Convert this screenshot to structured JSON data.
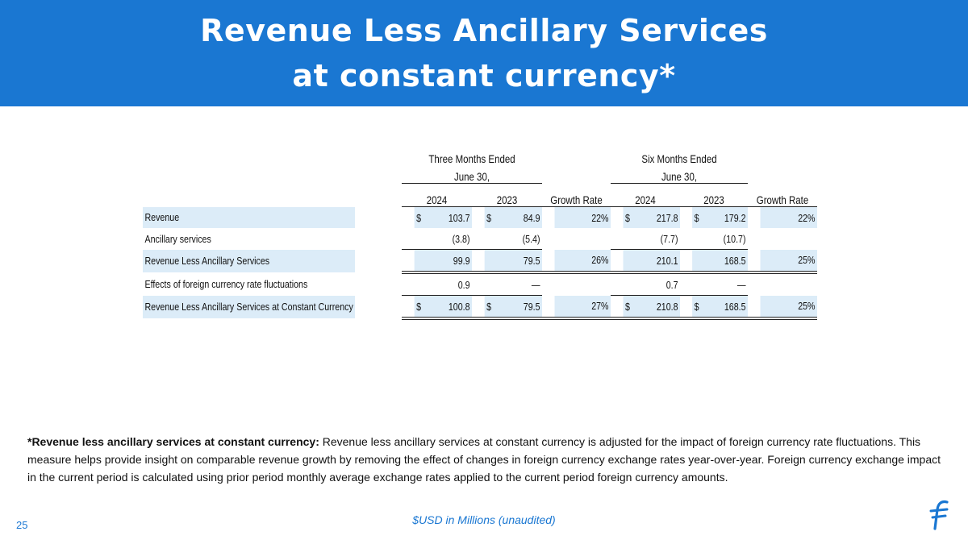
{
  "header": {
    "title_line1": "Revenue Less Ancillary Services",
    "title_line2": "at constant currency*"
  },
  "table": {
    "group1_line1": "Three Months Ended",
    "group1_line2": "June 30,",
    "group2_line1": "Six Months Ended",
    "group2_line2": "June 30,",
    "columns": [
      "2024",
      "2023",
      "Growth Rate",
      "2024",
      "2023",
      "Growth Rate"
    ],
    "rows": [
      {
        "label": "Revenue",
        "cur": "$",
        "q2024": "103.7",
        "q2023": "84.9",
        "q_growth": "22%",
        "h2024": "217.8",
        "h2023": "179.2",
        "h_growth": "22%"
      },
      {
        "label": "Ancillary services",
        "q2024": "(3.8)",
        "q2023": "(5.4)",
        "h2024": "(7.7)",
        "h2023": "(10.7)"
      },
      {
        "label": "Revenue Less Ancillary Services",
        "q2024": "99.9",
        "q2023": "79.5",
        "q_growth": "26%",
        "h2024": "210.1",
        "h2023": "168.5",
        "h_growth": "25%"
      },
      {
        "label": "Effects of foreign currency rate fluctuations",
        "q2024": "0.9",
        "q2023": "—",
        "h2024": "0.7",
        "h2023": "—"
      },
      {
        "label": "Revenue Less Ancillary Services at Constant Currency",
        "cur": "$",
        "q2024": "100.8",
        "q2023": "79.5",
        "q_growth": "27%",
        "h2024": "210.8",
        "h2023": "168.5",
        "h_growth": "25%"
      }
    ]
  },
  "footnote": {
    "bold_lead": "*Revenue less ancillary services at constant currency:",
    "text": " Revenue less ancillary services at constant currency is adjusted for the  impact of foreign currency rate fluctuations. This measure helps provide insight on comparable revenue growth by removing the effect of changes in foreign currency exchange rates year-over-year. Foreign currency exchange impact in the current period is calculated using prior period monthly average exchange rates applied to the current period foreign currency amounts."
  },
  "footer": {
    "page_number": "25",
    "units_note": "$USD in Millions (unaudited)",
    "logo_icon": "flywire-logo-icon",
    "accent_color": "#1a77d2"
  }
}
